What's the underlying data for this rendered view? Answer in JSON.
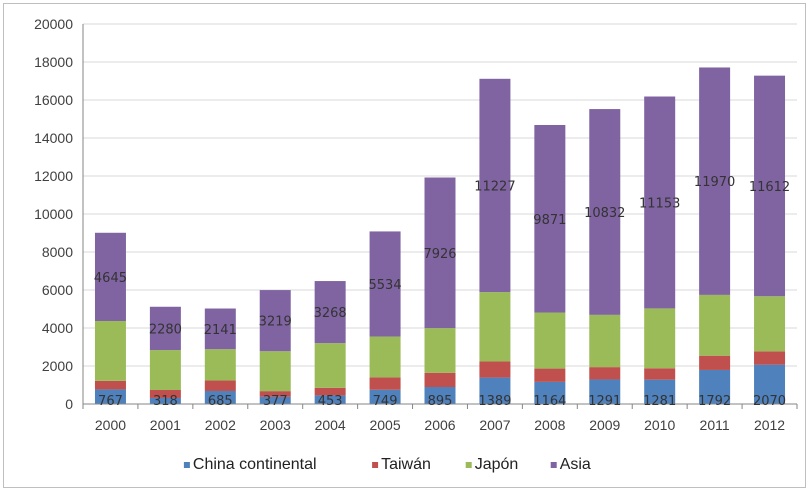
{
  "chart_data": {
    "type": "bar",
    "stacked": true,
    "categories": [
      "2000",
      "2001",
      "2002",
      "2003",
      "2004",
      "2005",
      "2006",
      "2007",
      "2008",
      "2009",
      "2010",
      "2011",
      "2012"
    ],
    "series": [
      {
        "name": "China continental",
        "color": "#4f81bd",
        "values": [
          767,
          318,
          685,
          377,
          453,
          749,
          895,
          1389,
          1164,
          1291,
          1281,
          1792,
          2070
        ],
        "data_labels": [
          "767",
          "318",
          "685",
          "377",
          "453",
          "749",
          "895",
          "1389",
          "1164",
          "1291",
          "1281",
          "1792",
          "2070"
        ]
      },
      {
        "name": "Taiwán",
        "color": "#c0504d",
        "values": [
          450,
          420,
          550,
          300,
          400,
          650,
          750,
          850,
          700,
          650,
          600,
          750,
          700
        ]
      },
      {
        "name": "Japón",
        "color": "#9bbb59",
        "values": [
          3150,
          2100,
          1650,
          2100,
          2350,
          2150,
          2350,
          3650,
          2950,
          2750,
          3150,
          3200,
          2900
        ]
      },
      {
        "name": "Asia",
        "color": "#8064a2",
        "values": [
          4645,
          2280,
          2141,
          3219,
          3268,
          5534,
          7926,
          11227,
          9871,
          10832,
          11153,
          11970,
          11612
        ],
        "data_labels": [
          "4645",
          "2280",
          "2141",
          "3219",
          "3268",
          "5534",
          "7926",
          "11227",
          "9871",
          "10832",
          "11153",
          "11970",
          "11612"
        ]
      }
    ],
    "ylim": [
      0,
      20000
    ],
    "yticks": [
      "0",
      "2000",
      "4000",
      "6000",
      "8000",
      "10000",
      "12000",
      "14000",
      "16000",
      "18000",
      "20000"
    ],
    "grid": true,
    "legend_position": "bottom",
    "title": "",
    "xlabel": "",
    "ylabel": ""
  }
}
